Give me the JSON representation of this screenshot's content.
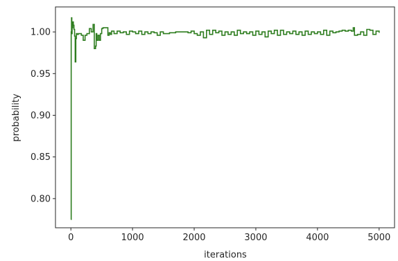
{
  "chart_data": {
    "type": "line",
    "title": "",
    "xlabel": "iterations",
    "ylabel": "probability",
    "xlim": [
      -250,
      5250
    ],
    "ylim": [
      0.765,
      1.03
    ],
    "xticks": [
      0,
      1000,
      2000,
      3000,
      4000,
      5000
    ],
    "xtick_labels": [
      "0",
      "1000",
      "2000",
      "3000",
      "4000",
      "5000"
    ],
    "yticks": [
      0.8,
      0.85,
      0.9,
      0.95,
      1.0
    ],
    "ytick_labels": [
      "0.80",
      "0.85",
      "0.90",
      "0.95",
      "1.00"
    ],
    "grid": false,
    "legend": "none",
    "series": [
      {
        "color": "#2e7d1f",
        "x": [
          0,
          5,
          10,
          15,
          20,
          30,
          40,
          50,
          60,
          70,
          80,
          90,
          100,
          120,
          150,
          170,
          200,
          230,
          260,
          300,
          330,
          360,
          380,
          400,
          410,
          420,
          440,
          460,
          480,
          500,
          520,
          540,
          560,
          580,
          600,
          620,
          640,
          660,
          700,
          750,
          800,
          850,
          900,
          950,
          1000,
          1050,
          1100,
          1150,
          1200,
          1250,
          1300,
          1350,
          1400,
          1450,
          1500,
          1600,
          1700,
          1800,
          1900,
          1950,
          2000,
          2050,
          2100,
          2150,
          2200,
          2250,
          2300,
          2350,
          2400,
          2450,
          2500,
          2550,
          2600,
          2650,
          2700,
          2750,
          2800,
          2850,
          2900,
          2950,
          3000,
          3050,
          3100,
          3150,
          3200,
          3250,
          3300,
          3350,
          3400,
          3450,
          3500,
          3550,
          3600,
          3650,
          3700,
          3750,
          3800,
          3850,
          3900,
          3950,
          4000,
          4050,
          4100,
          4150,
          4200,
          4250,
          4300,
          4350,
          4400,
          4450,
          4500,
          4550,
          4580,
          4600,
          4650,
          4700,
          4750,
          4800,
          4850,
          4900,
          4950,
          5000
        ],
        "values": [
          0.775,
          1.0,
          1.017,
          0.998,
          1.005,
          1.012,
          1.008,
          1.003,
          0.995,
          0.964,
          0.992,
          0.998,
          0.997,
          0.998,
          0.998,
          0.996,
          0.99,
          0.996,
          0.998,
          1.004,
          1.0,
          1.009,
          0.98,
          0.983,
          0.998,
          0.99,
          0.996,
          0.99,
          0.998,
          1.004,
          1.005,
          1.005,
          1.005,
          1.005,
          0.996,
          0.999,
          0.997,
          1.001,
          0.998,
          1.001,
          0.999,
          1.0,
          0.997,
          1.001,
          1.0,
          0.998,
          1.001,
          0.997,
          1.0,
          0.998,
          1.0,
          0.999,
          0.996,
          1.0,
          0.998,
          0.999,
          1.0,
          1.0,
          0.999,
          1.001,
          0.998,
          0.996,
          1.0,
          0.993,
          1.002,
          0.997,
          1.002,
          0.999,
          1.001,
          0.996,
          1.0,
          0.997,
          1.0,
          0.996,
          1.002,
          0.998,
          1.0,
          0.998,
          1.0,
          0.996,
          1.001,
          0.997,
          1.0,
          0.994,
          1.001,
          0.998,
          1.002,
          0.996,
          1.002,
          0.997,
          1.0,
          0.998,
          1.001,
          0.997,
          1.0,
          0.996,
          1.001,
          0.997,
          1.0,
          0.998,
          1.0,
          0.997,
          1.002,
          0.996,
          1.001,
          0.999,
          1.0,
          1.001,
          1.002,
          1.001,
          1.002,
          1.001,
          1.005,
          0.996,
          0.997,
          1.0,
          0.996,
          1.003,
          1.002,
          0.997,
          1.001,
          0.999
        ]
      }
    ]
  }
}
